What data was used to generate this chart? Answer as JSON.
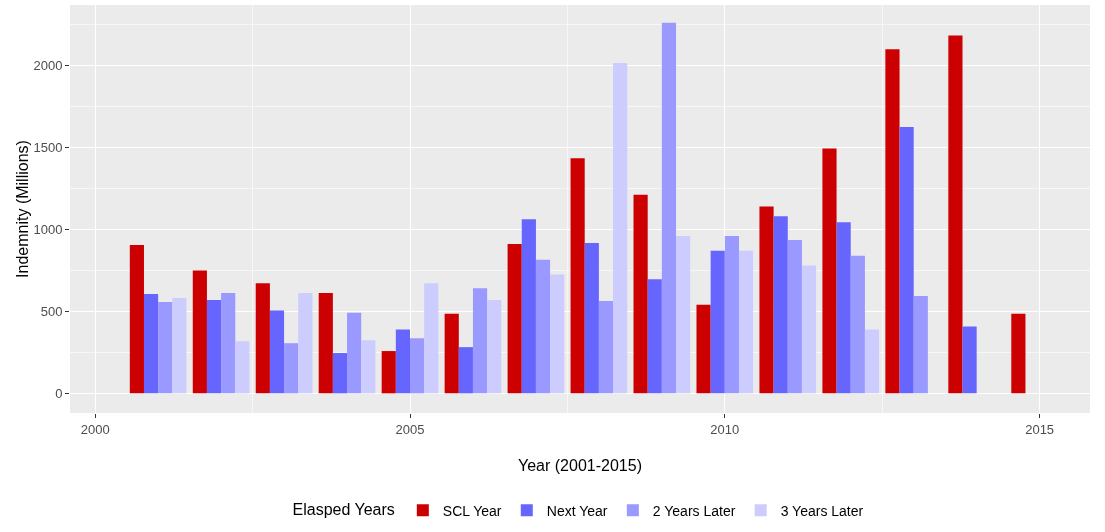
{
  "chart_data": {
    "type": "bar",
    "xlabel": "Year (2001-2015)",
    "ylabel": "Indemnity (Millions)",
    "legend_title": "Elasped Years",
    "x": [
      2001,
      2002,
      2003,
      2004,
      2005,
      2006,
      2007,
      2008,
      2009,
      2010,
      2011,
      2012,
      2013,
      2014,
      2015
    ],
    "series": [
      {
        "name": "SCL Year",
        "color": "#cc0000",
        "values": [
          906,
          750,
          672,
          612,
          258,
          486,
          912,
          1434,
          1212,
          540,
          1140,
          1494,
          2100,
          2184,
          486
        ]
      },
      {
        "name": "Next Year",
        "color": "#6666ff",
        "values": [
          606,
          570,
          505,
          246,
          390,
          282,
          1062,
          918,
          696,
          870,
          1080,
          1044,
          1626,
          408,
          null
        ]
      },
      {
        "name": "2 Years Later",
        "color": "#9999ff",
        "values": [
          558,
          612,
          306,
          492,
          336,
          642,
          816,
          564,
          2262,
          960,
          936,
          840,
          594,
          null,
          null
        ]
      },
      {
        "name": "3 Years Later",
        "color": "#ccccff",
        "values": [
          582,
          318,
          612,
          324,
          672,
          570,
          726,
          2016,
          960,
          870,
          780,
          390,
          null,
          null,
          null
        ]
      }
    ],
    "xlim": [
      1999.6,
      2015.8
    ],
    "xticks": [
      2000,
      2005,
      2010,
      2015
    ],
    "ylim": [
      -120,
      2370
    ],
    "yticks": [
      0,
      500,
      1000,
      1500,
      2000
    ],
    "grid": true,
    "legend": "bottom"
  }
}
